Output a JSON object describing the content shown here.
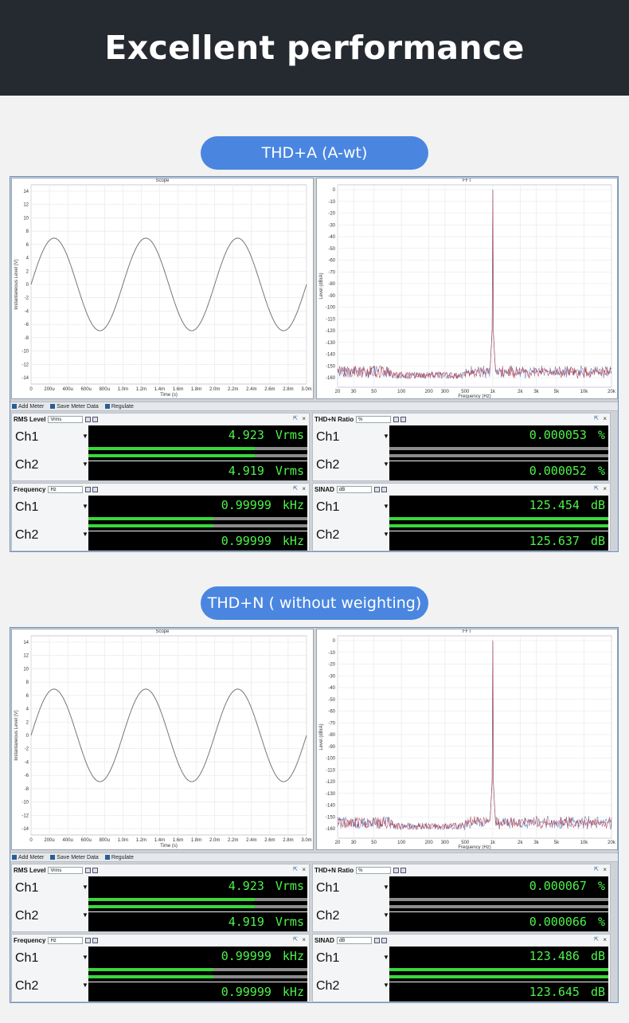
{
  "hero": {
    "title": "Excellent performance"
  },
  "sections": [
    {
      "label": "THD+A (A-wt)",
      "scope": {
        "title": "Scope",
        "ylabel": "Instantaneous Level (V)",
        "xlabel": "Time (s)",
        "yticks": [
          "14",
          "12",
          "10",
          "8",
          "6",
          "4",
          "2",
          "0",
          "-2",
          "-4",
          "-6",
          "-8",
          "-10",
          "-12",
          "-14"
        ],
        "xticks": [
          "0",
          "200u",
          "400u",
          "600u",
          "800u",
          "1.0m",
          "1.2m",
          "1.4m",
          "1.6m",
          "1.8m",
          "2.0m",
          "2.2m",
          "2.4m",
          "2.6m",
          "2.8m",
          "3.0m"
        ]
      },
      "fft": {
        "title": "FFT",
        "ylabel": "Level (dBrA)",
        "xlabel": "Frequency (Hz)",
        "yticks": [
          "0",
          "-10",
          "-20",
          "-30",
          "-40",
          "-50",
          "-60",
          "-70",
          "-80",
          "-90",
          "-100",
          "-110",
          "-120",
          "-130",
          "-140",
          "-150",
          "-160"
        ],
        "xticks": [
          "20",
          "30",
          "50",
          "100",
          "200",
          "300",
          "500",
          "1k",
          "2k",
          "3k",
          "5k",
          "10k",
          "20k"
        ]
      },
      "toolbar": {
        "add": "Add Meter",
        "save": "Save Meter Data",
        "regulate": "Regulate"
      },
      "meters": [
        {
          "name": "RMS Level",
          "unit_sel": "Vrms",
          "ch1": "4.923",
          "ch2": "4.919",
          "unit": "Vrms",
          "bar1": 0.76,
          "bar2": 0.76
        },
        {
          "name": "THD+N Ratio",
          "unit_sel": "%",
          "ch1": "0.000053",
          "ch2": "0.000052",
          "unit": "%",
          "bar1": 0.0,
          "bar2": 0.0
        },
        {
          "name": "Frequency",
          "unit_sel": "Hz",
          "ch1": "0.99999",
          "ch2": "0.99999",
          "unit": "kHz",
          "bar1": 0.57,
          "bar2": 0.57
        },
        {
          "name": "SINAD",
          "unit_sel": "dB",
          "ch1": "125.454",
          "ch2": "125.637",
          "unit": "dB",
          "bar1": 1.0,
          "bar2": 1.0
        }
      ]
    },
    {
      "label": "THD+N ( without weighting)",
      "scope": {
        "title": "Scope",
        "ylabel": "Instantaneous Level (V)",
        "xlabel": "Time (s)",
        "yticks": [
          "14",
          "12",
          "10",
          "8",
          "6",
          "4",
          "2",
          "0",
          "-2",
          "-4",
          "-6",
          "-8",
          "-10",
          "-12",
          "-14"
        ],
        "xticks": [
          "0",
          "200u",
          "400u",
          "600u",
          "800u",
          "1.0m",
          "1.2m",
          "1.4m",
          "1.6m",
          "1.8m",
          "2.0m",
          "2.2m",
          "2.4m",
          "2.6m",
          "2.8m",
          "3.0m"
        ]
      },
      "fft": {
        "title": "FFT",
        "ylabel": "Level (dBrA)",
        "xlabel": "Frequency (Hz)",
        "yticks": [
          "0",
          "-10",
          "-20",
          "-30",
          "-40",
          "-50",
          "-60",
          "-70",
          "-80",
          "-90",
          "-100",
          "-110",
          "-120",
          "-130",
          "-140",
          "-150",
          "-160"
        ],
        "xticks": [
          "20",
          "30",
          "50",
          "100",
          "200",
          "300",
          "500",
          "1k",
          "2k",
          "3k",
          "5k",
          "10k",
          "20k"
        ]
      },
      "toolbar": {
        "add": "Add Meter",
        "save": "Save Meter Data",
        "regulate": "Regulate"
      },
      "meters": [
        {
          "name": "RMS Level",
          "unit_sel": "Vrms",
          "ch1": "4.923",
          "ch2": "4.919",
          "unit": "Vrms",
          "bar1": 0.76,
          "bar2": 0.76
        },
        {
          "name": "THD+N Ratio",
          "unit_sel": "%",
          "ch1": "0.000067",
          "ch2": "0.000066",
          "unit": "%",
          "bar1": 0.0,
          "bar2": 0.0
        },
        {
          "name": "Frequency",
          "unit_sel": "Hz",
          "ch1": "0.99999",
          "ch2": "0.99999",
          "unit": "kHz",
          "bar1": 0.57,
          "bar2": 0.57
        },
        {
          "name": "SINAD",
          "unit_sel": "dB",
          "ch1": "123.486",
          "ch2": "123.645",
          "unit": "dB",
          "bar1": 1.0,
          "bar2": 1.0
        }
      ]
    }
  ],
  "channels": [
    "Ch1",
    "Ch2"
  ]
}
